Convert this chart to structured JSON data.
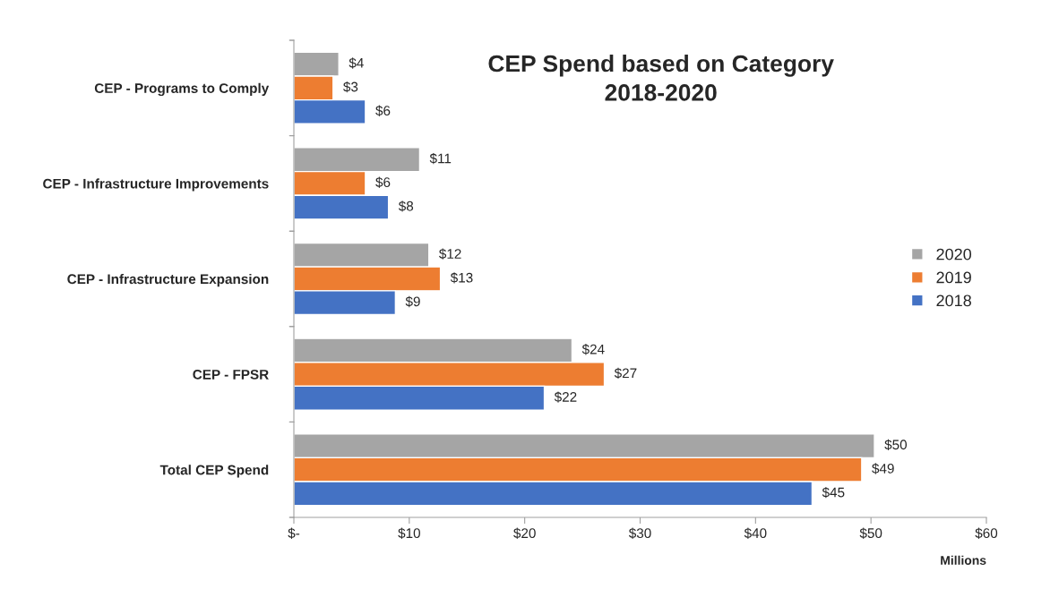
{
  "chart_data": {
    "type": "bar",
    "orientation": "horizontal",
    "title": "CEP Spend based on Category\n2018-2020",
    "xlabel": "Millions",
    "categories": [
      "CEP - Programs to Comply",
      "CEP - Infrastructure Improvements",
      "CEP - Infrastructure Expansion",
      "CEP - FPSR",
      "Total CEP Spend"
    ],
    "series": [
      {
        "name": "2020",
        "color": "#a5a5a5",
        "values": [
          3.9,
          10.9,
          11.7,
          24.1,
          50.3
        ],
        "value_labels": [
          "$4",
          "$11",
          "$12",
          "$24",
          "$50"
        ]
      },
      {
        "name": "2019",
        "color": "#ed7d31",
        "values": [
          3.4,
          6.2,
          12.7,
          26.9,
          49.2
        ],
        "value_labels": [
          "$3",
          "$6",
          "$13",
          "$27",
          "$49"
        ]
      },
      {
        "name": "2018",
        "color": "#4472c4",
        "values": [
          6.2,
          8.2,
          8.8,
          21.7,
          44.9
        ],
        "value_labels": [
          "$6",
          "$8",
          "$9",
          "$22",
          "$45"
        ]
      }
    ],
    "xlim": [
      0,
      60
    ],
    "xticks": [
      {
        "value": 0,
        "label": "$-"
      },
      {
        "value": 10,
        "label": "$10"
      },
      {
        "value": 20,
        "label": "$20"
      },
      {
        "value": 30,
        "label": "$30"
      },
      {
        "value": 40,
        "label": "$40"
      },
      {
        "value": 50,
        "label": "$50"
      },
      {
        "value": 60,
        "label": "$60"
      }
    ],
    "legend": "right",
    "grid": false
  }
}
